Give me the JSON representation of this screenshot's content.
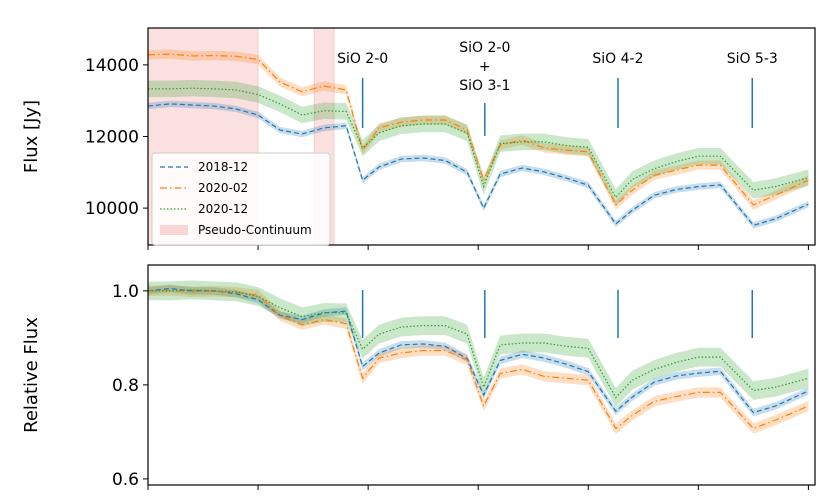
{
  "chart_data": [
    {
      "type": "line",
      "ylabel": "Flux [Jy]",
      "x": [
        0,
        2,
        4,
        6,
        8,
        10,
        12,
        14,
        16,
        18,
        19.5,
        21,
        23,
        25,
        27,
        29,
        30.5,
        32,
        34,
        36,
        38,
        40,
        42.5,
        44,
        46,
        48,
        50,
        52,
        55,
        57,
        60
      ],
      "xlim": [
        0,
        60.6
      ],
      "xticks": [
        0,
        10,
        20,
        30,
        40,
        50,
        60
      ],
      "ylim": [
        8970,
        15030
      ],
      "yticks": [
        10000,
        12000,
        14000
      ],
      "legend": "lower left",
      "series": [
        {
          "name": "2018-12",
          "color": "#1f77b4",
          "linestyle": "dashed",
          "error": 90,
          "values": [
            12850,
            12910,
            12880,
            12850,
            12770,
            12600,
            12180,
            12070,
            12240,
            12300,
            10780,
            11150,
            11370,
            11400,
            11330,
            11000,
            10000,
            10950,
            11120,
            11010,
            10840,
            10640,
            9560,
            9940,
            10360,
            10520,
            10600,
            10650,
            9520,
            9700,
            10110
          ]
        },
        {
          "name": "2020-02",
          "color": "#ff7f0e",
          "linestyle": "dashdot",
          "error": 130,
          "values": [
            14280,
            14300,
            14250,
            14260,
            14240,
            14150,
            13520,
            13250,
            13410,
            13300,
            11620,
            12240,
            12400,
            12460,
            12460,
            12180,
            10780,
            11760,
            11900,
            11680,
            11620,
            11570,
            10090,
            10500,
            10920,
            11060,
            11200,
            11200,
            10090,
            10360,
            10780
          ]
        },
        {
          "name": "2020-12",
          "color": "#2ca02c",
          "linestyle": "dotted",
          "error": 230,
          "values": [
            13330,
            13330,
            13350,
            13330,
            13300,
            13170,
            12910,
            12600,
            12720,
            12700,
            11680,
            12100,
            12300,
            12350,
            12350,
            12100,
            10600,
            11800,
            11850,
            11850,
            11750,
            11700,
            10300,
            10800,
            11100,
            11300,
            11450,
            11450,
            10500,
            10600,
            10850
          ]
        }
      ],
      "spans": {
        "name": "Pseudo-Continuum",
        "color": "#f4a6a6",
        "ranges": [
          [
            0,
            10
          ],
          [
            15.1,
            16.9
          ]
        ]
      },
      "annotations": [
        {
          "x": 19.5,
          "text": [
            "SiO 2-0"
          ]
        },
        {
          "x": 30.6,
          "text": [
            "SiO 2-0",
            "+",
            "SiO 3-1"
          ]
        },
        {
          "x": 42.7,
          "text": [
            "SiO 4-2"
          ]
        },
        {
          "x": 54.9,
          "text": [
            "SiO 5-3"
          ]
        }
      ]
    },
    {
      "type": "line",
      "ylabel": "Relative Flux",
      "x": [
        0,
        2,
        4,
        6,
        8,
        10,
        12,
        14,
        16,
        18,
        19.5,
        21,
        23,
        25,
        27,
        29,
        30.5,
        32,
        34,
        36,
        38,
        40,
        42.5,
        44,
        46,
        48,
        50,
        52,
        55,
        57,
        60
      ],
      "xlim": [
        0,
        60.6
      ],
      "xticks": [
        0,
        10,
        20,
        30,
        40,
        50,
        60
      ],
      "ylim": [
        0.587,
        1.055
      ],
      "yticks": [
        0.6,
        0.8,
        {
          "value": 1,
          "label": "1.0"
        }
      ],
      "series": [
        {
          "name": "2018-12",
          "color": "#1f77b4",
          "linestyle": "dashed",
          "error": 0.008,
          "values": [
            1.0,
            1.005,
            1.0,
            1.0,
            0.994,
            0.981,
            0.948,
            0.939,
            0.953,
            0.957,
            0.839,
            0.868,
            0.885,
            0.887,
            0.882,
            0.856,
            0.778,
            0.852,
            0.865,
            0.857,
            0.844,
            0.828,
            0.744,
            0.774,
            0.806,
            0.819,
            0.825,
            0.829,
            0.741,
            0.755,
            0.787
          ]
        },
        {
          "name": "2020-02",
          "color": "#ff7f0e",
          "linestyle": "dashdot",
          "error": 0.011,
          "values": [
            1.0,
            1.001,
            0.998,
            0.999,
            0.997,
            0.991,
            0.947,
            0.928,
            0.939,
            0.93,
            0.814,
            0.857,
            0.868,
            0.873,
            0.873,
            0.853,
            0.755,
            0.824,
            0.833,
            0.818,
            0.814,
            0.81,
            0.707,
            0.735,
            0.765,
            0.775,
            0.784,
            0.784,
            0.707,
            0.725,
            0.755
          ]
        },
        {
          "name": "2020-12",
          "color": "#2ca02c",
          "linestyle": "dotted",
          "error": 0.02,
          "values": [
            1.0,
            1.0,
            1.002,
            1.0,
            0.998,
            0.988,
            0.964,
            0.945,
            0.954,
            0.953,
            0.876,
            0.908,
            0.923,
            0.926,
            0.926,
            0.908,
            0.795,
            0.885,
            0.889,
            0.889,
            0.882,
            0.878,
            0.773,
            0.81,
            0.833,
            0.848,
            0.859,
            0.859,
            0.788,
            0.795,
            0.814
          ]
        }
      ],
      "markers_x": [
        19.5,
        30.6,
        42.7,
        54.9
      ]
    }
  ]
}
